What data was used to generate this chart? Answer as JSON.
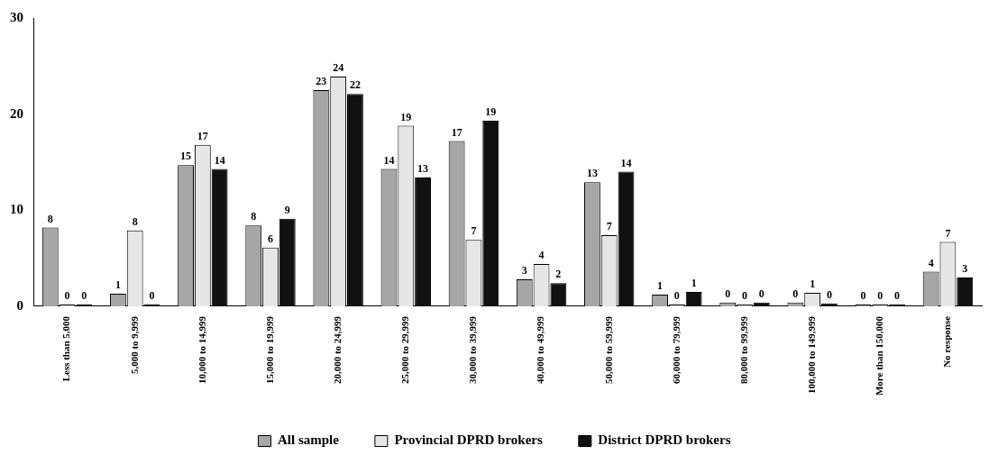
{
  "chart_data": {
    "type": "bar",
    "categories": [
      "Less than 5,000",
      "5,000 to 9,999",
      "10,000 to 14,999",
      "15,000 to 19,999",
      "20,000 to 24,999",
      "25,000 to 29,999",
      "30,000 to 39,999",
      "40,000 to 49,999",
      "50,000 to 59,999",
      "60,000 to 79,999",
      "80,000 to 99,999",
      "100,000 to 149,999",
      "More than 150,000",
      "No response"
    ],
    "series": [
      {
        "name": "All sample",
        "color": "#a6a6a6",
        "values": [
          8.2,
          1.3,
          14.7,
          8.4,
          22.5,
          14.3,
          17.2,
          2.8,
          12.9,
          1.2,
          0.4,
          0.4,
          0,
          3.6
        ],
        "value_labels": [
          "8",
          "1",
          "15",
          "8",
          "23",
          "14",
          "17",
          "3",
          "13",
          "1",
          "0",
          "0",
          "0",
          "4"
        ]
      },
      {
        "name": "Provincial DPRD brokers",
        "color": "#e6e6e6",
        "values": [
          0,
          7.9,
          16.8,
          6.1,
          23.9,
          18.8,
          6.9,
          4.4,
          7.4,
          0,
          0,
          1.4,
          0,
          6.7
        ],
        "value_labels": [
          "0",
          "8",
          "17",
          "6",
          "24",
          "19",
          "7",
          "4",
          "7",
          "0",
          "0",
          "1",
          "0",
          "7"
        ]
      },
      {
        "name": "District DPRD brokers",
        "color": "#111111",
        "values": [
          0,
          0,
          14.3,
          9.1,
          22.1,
          13.4,
          19.3,
          2.4,
          14.0,
          1.5,
          0.4,
          0.3,
          0,
          3.0
        ],
        "value_labels": [
          "0",
          "0",
          "14",
          "9",
          "22",
          "13",
          "19",
          "2",
          "14",
          "1",
          "0",
          "0",
          "0",
          "3"
        ]
      }
    ],
    "ylim": [
      0,
      30
    ],
    "yticks": [
      0,
      10,
      20,
      30
    ],
    "grid": false,
    "legend": "bottom"
  }
}
